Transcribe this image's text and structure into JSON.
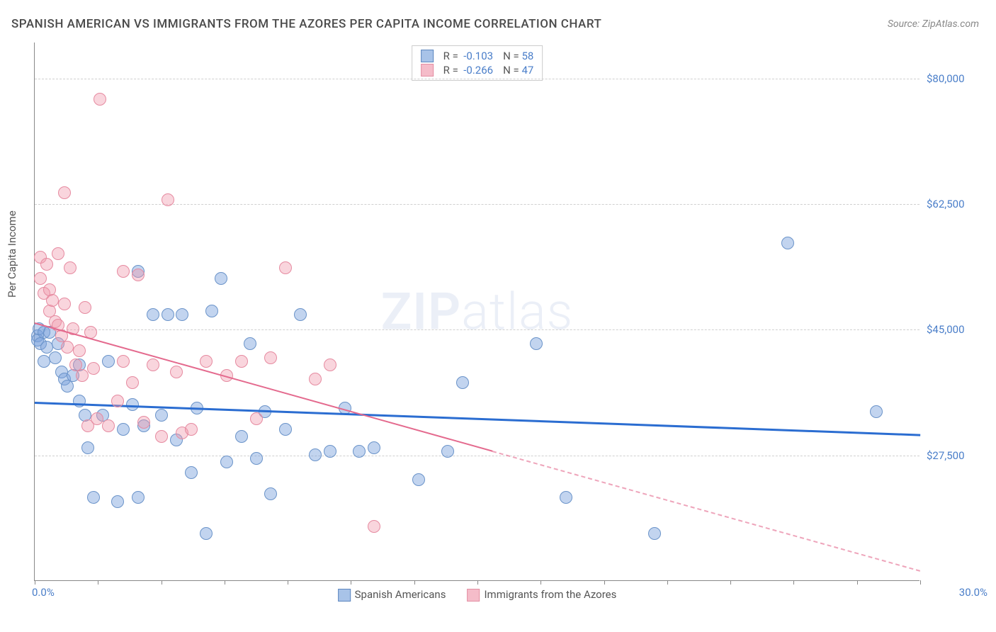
{
  "title": "SPANISH AMERICAN VS IMMIGRANTS FROM THE AZORES PER CAPITA INCOME CORRELATION CHART",
  "source": "Source: ZipAtlas.com",
  "watermark": {
    "bold": "ZIP",
    "light": "atlas"
  },
  "ylabel": "Per Capita Income",
  "chart": {
    "type": "scatter",
    "xlim": [
      0,
      30
    ],
    "ylim": [
      10000,
      85000
    ],
    "xlabels": {
      "min": "0.0%",
      "max": "30.0%"
    },
    "yticks": [
      {
        "v": 27500,
        "label": "$27,500"
      },
      {
        "v": 45000,
        "label": "$45,000"
      },
      {
        "v": 62500,
        "label": "$62,500"
      },
      {
        "v": 80000,
        "label": "$80,000"
      }
    ],
    "xticks_minor": [
      0,
      2.14,
      4.29,
      6.43,
      8.57,
      10.71,
      12.86,
      15,
      17.14,
      19.29,
      21.43,
      23.57,
      25.71,
      27.86,
      30
    ],
    "series": [
      {
        "name": "Spanish Americans",
        "color_fill": "rgba(120, 160, 220, 0.45)",
        "color_stroke": "#6a93c9",
        "legend_fill": "#a8c3e8",
        "legend_stroke": "#5d87bf",
        "R": "-0.103",
        "N": "58",
        "marker_radius": 9,
        "trend": {
          "x1": 0,
          "y1": 35000,
          "x2": 30,
          "y2": 30500,
          "color": "#2b6dd1",
          "width": 2.5,
          "dash": false,
          "solid_until_x": 30
        },
        "points": [
          [
            0.1,
            44000
          ],
          [
            0.1,
            43500
          ],
          [
            0.15,
            45000
          ],
          [
            0.2,
            43000
          ],
          [
            0.3,
            44500
          ],
          [
            0.3,
            40500
          ],
          [
            0.4,
            42500
          ],
          [
            0.5,
            44500
          ],
          [
            0.7,
            41000
          ],
          [
            0.8,
            43000
          ],
          [
            0.9,
            39000
          ],
          [
            1.0,
            38000
          ],
          [
            1.1,
            37000
          ],
          [
            1.3,
            38500
          ],
          [
            1.5,
            35000
          ],
          [
            1.5,
            40000
          ],
          [
            1.7,
            33000
          ],
          [
            1.8,
            28500
          ],
          [
            2.0,
            21500
          ],
          [
            2.3,
            33000
          ],
          [
            2.5,
            40500
          ],
          [
            2.8,
            21000
          ],
          [
            3.0,
            31000
          ],
          [
            3.3,
            34500
          ],
          [
            3.5,
            53000
          ],
          [
            3.7,
            31500
          ],
          [
            3.5,
            21500
          ],
          [
            4.0,
            47000
          ],
          [
            4.3,
            33000
          ],
          [
            4.5,
            47000
          ],
          [
            4.8,
            29500
          ],
          [
            5.0,
            47000
          ],
          [
            5.3,
            25000
          ],
          [
            5.5,
            34000
          ],
          [
            5.8,
            16500
          ],
          [
            6.0,
            47500
          ],
          [
            6.3,
            52000
          ],
          [
            6.5,
            26500
          ],
          [
            7.0,
            30000
          ],
          [
            7.3,
            43000
          ],
          [
            7.5,
            27000
          ],
          [
            7.8,
            33500
          ],
          [
            8.0,
            22000
          ],
          [
            8.5,
            31000
          ],
          [
            9.0,
            47000
          ],
          [
            9.5,
            27500
          ],
          [
            10.0,
            28000
          ],
          [
            10.5,
            34000
          ],
          [
            11.0,
            28000
          ],
          [
            11.5,
            28500
          ],
          [
            13.0,
            24000
          ],
          [
            14.5,
            37500
          ],
          [
            17.0,
            43000
          ],
          [
            18.0,
            21500
          ],
          [
            21.0,
            16500
          ],
          [
            25.5,
            57000
          ],
          [
            28.5,
            33500
          ],
          [
            14.0,
            28000
          ]
        ]
      },
      {
        "name": "Immigrants from the Azores",
        "color_fill": "rgba(240, 150, 170, 0.40)",
        "color_stroke": "#e68aa0",
        "legend_fill": "#f5bcc9",
        "legend_stroke": "#e38fa3",
        "R": "-0.266",
        "N": "47",
        "marker_radius": 9,
        "trend": {
          "x1": 0,
          "y1": 46000,
          "x2": 30,
          "y2": 11500,
          "color": "#e46a8e",
          "width": 2,
          "dash": true,
          "solid_until_x": 15.5
        },
        "points": [
          [
            0.2,
            55000
          ],
          [
            0.2,
            52000
          ],
          [
            0.3,
            50000
          ],
          [
            0.4,
            54000
          ],
          [
            0.5,
            50500
          ],
          [
            0.5,
            47500
          ],
          [
            0.6,
            49000
          ],
          [
            0.7,
            46000
          ],
          [
            0.8,
            55500
          ],
          [
            0.8,
            45500
          ],
          [
            0.9,
            44000
          ],
          [
            1.0,
            48500
          ],
          [
            1.0,
            64000
          ],
          [
            1.1,
            42500
          ],
          [
            1.2,
            53500
          ],
          [
            1.3,
            45000
          ],
          [
            1.4,
            40000
          ],
          [
            1.5,
            42000
          ],
          [
            1.6,
            38500
          ],
          [
            1.7,
            48000
          ],
          [
            1.8,
            31500
          ],
          [
            1.9,
            44500
          ],
          [
            2.0,
            39500
          ],
          [
            2.1,
            32500
          ],
          [
            2.2,
            77000
          ],
          [
            2.5,
            31500
          ],
          [
            2.8,
            35000
          ],
          [
            3.0,
            53000
          ],
          [
            3.0,
            40500
          ],
          [
            3.3,
            37500
          ],
          [
            3.5,
            52500
          ],
          [
            3.7,
            32000
          ],
          [
            4.0,
            40000
          ],
          [
            4.3,
            30000
          ],
          [
            4.5,
            63000
          ],
          [
            4.8,
            39000
          ],
          [
            5.0,
            30500
          ],
          [
            5.3,
            31000
          ],
          [
            5.8,
            40500
          ],
          [
            6.5,
            38500
          ],
          [
            7.0,
            40500
          ],
          [
            7.5,
            32500
          ],
          [
            8.0,
            41000
          ],
          [
            8.5,
            53500
          ],
          [
            9.5,
            38000
          ],
          [
            10.0,
            40000
          ],
          [
            11.5,
            17500
          ]
        ]
      }
    ]
  },
  "colors": {
    "title": "#4a4a4a",
    "source": "#888888",
    "axis": "#888888",
    "grid": "#d0d0d0",
    "tick_label": "#4a7ec9",
    "background": "#ffffff"
  },
  "fonts": {
    "title_size": 17,
    "label_size": 15,
    "watermark_size": 72
  }
}
